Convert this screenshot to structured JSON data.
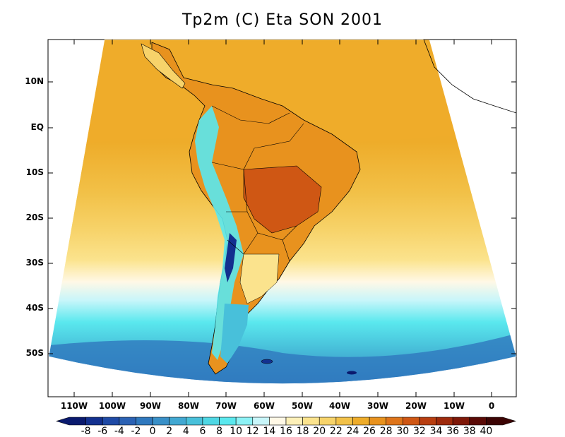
{
  "title": "Tp2m (C) Eta SON 2001",
  "lat_labels": [
    "10N",
    "EQ",
    "10S",
    "20S",
    "30S",
    "40S",
    "50S"
  ],
  "lon_labels": [
    "110W",
    "100W",
    "90W",
    "80W",
    "70W",
    "60W",
    "50W",
    "40W",
    "30W",
    "20W",
    "10W",
    "0"
  ],
  "colorbar": {
    "labels": [
      "-8",
      "-6",
      "-4",
      "-2",
      "0",
      "2",
      "4",
      "6",
      "8",
      "10",
      "12",
      "14",
      "16",
      "18",
      "20",
      "22",
      "24",
      "26",
      "28",
      "30",
      "32",
      "34",
      "36",
      "38",
      "40"
    ],
    "colors": [
      "#0a1a6e",
      "#13308f",
      "#1f4aa6",
      "#2b62b4",
      "#2f78be",
      "#3990c8",
      "#41a8d2",
      "#48c0da",
      "#4fd7e4",
      "#5ae8ee",
      "#8cf2f6",
      "#c8f6fa",
      "#fff8e6",
      "#fdf0b8",
      "#fbe38d",
      "#f7d36a",
      "#f2c148",
      "#eeac2a",
      "#e8921e",
      "#de741a",
      "#cf5714",
      "#b83e10",
      "#9e2a0c",
      "#7e1808",
      "#5a0a06",
      "#3c0404"
    ]
  },
  "map_colors": {
    "warm_dark": "#d6621a",
    "warm": "#eeac2a",
    "warm_light": "#f2c148",
    "yellow": "#f7d36a",
    "pale": "#fbe38d",
    "cream": "#fff8e6",
    "icy": "#c8f6fa",
    "cyan": "#5ae8ee",
    "teal": "#41a8d2",
    "blue": "#2f78be",
    "navy": "#13308f"
  }
}
